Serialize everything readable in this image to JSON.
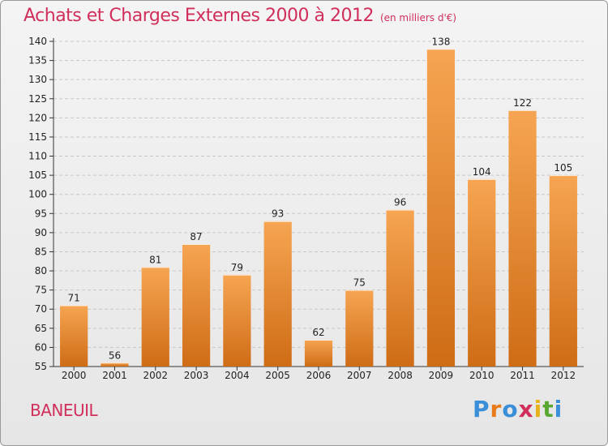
{
  "header": {
    "title": "Achats et Charges Externes 2000 à 2012",
    "unit": "(en milliers d'€)"
  },
  "footer": {
    "commune": "BANEUIL",
    "logo_letters": [
      "P",
      "r",
      "o",
      "x",
      "i",
      "t",
      "i"
    ],
    "logo_colors": [
      "#3b8fd8",
      "#e87b1c",
      "#3b8fd8",
      "#d12f5b",
      "#e8b21c",
      "#5aa832",
      "#3b8fd8"
    ]
  },
  "colors": {
    "bar_light": "#f6a552",
    "bar_dark": "#cf6c16",
    "title": "#d12f5b"
  },
  "chart_data": {
    "type": "bar",
    "title": "Achats et Charges Externes 2000 à 2012",
    "subtitle": "(en milliers d'€)",
    "categories": [
      "2000",
      "2001",
      "2002",
      "2003",
      "2004",
      "2005",
      "2006",
      "2007",
      "2008",
      "2009",
      "2010",
      "2011",
      "2012"
    ],
    "values": [
      71,
      56,
      81,
      87,
      79,
      93,
      62,
      75,
      96,
      138,
      104,
      122,
      105
    ],
    "ylim": [
      55,
      140
    ],
    "yticks": [
      55,
      60,
      65,
      70,
      75,
      80,
      85,
      90,
      95,
      100,
      105,
      110,
      115,
      120,
      125,
      130,
      135,
      140
    ],
    "grid": true,
    "xlabel": "",
    "ylabel": ""
  }
}
